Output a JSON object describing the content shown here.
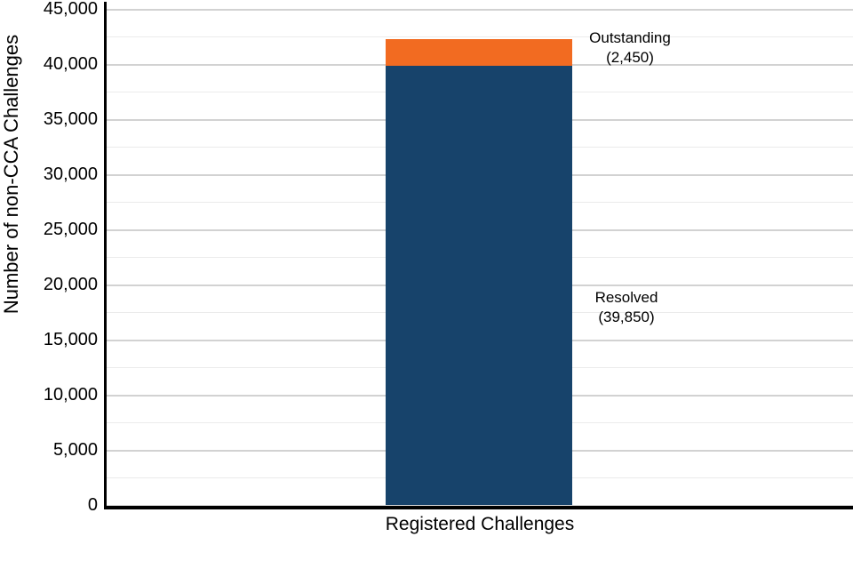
{
  "chart_data": {
    "type": "bar",
    "stacked": true,
    "categories": [
      "Registered Challenges"
    ],
    "series": [
      {
        "name": "Resolved",
        "values": [
          39850
        ],
        "color": "#17436b"
      },
      {
        "name": "Outstanding",
        "values": [
          2450
        ],
        "color": "#f26b21"
      }
    ],
    "title": "",
    "xlabel": "Registered Challenges",
    "ylabel": "Number of non-CCA Challenges",
    "ylim": [
      0,
      45000
    ],
    "ytick_major": 5000,
    "ytick_minor": 2500,
    "grid": true,
    "legend_position": "none",
    "annotations": [
      {
        "target": "Outstanding",
        "label": "Outstanding",
        "value_text": "(2,450)"
      },
      {
        "target": "Resolved",
        "label": "Resolved",
        "value_text": "(39,850)"
      }
    ]
  }
}
